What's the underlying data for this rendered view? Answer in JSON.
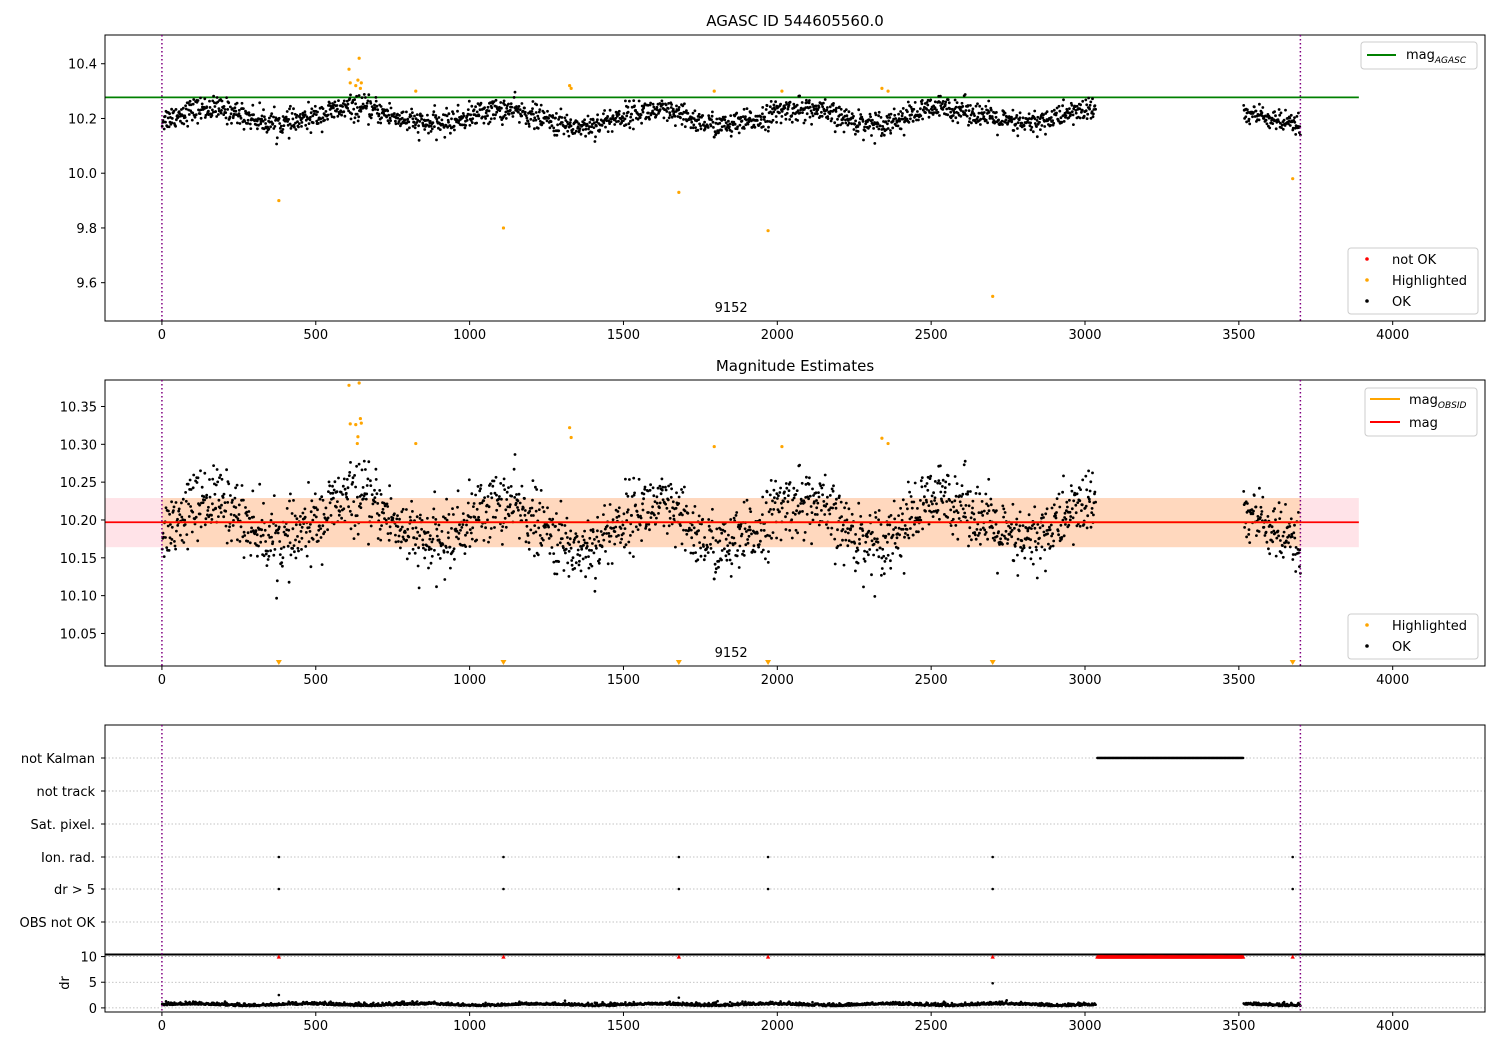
{
  "colors": {
    "ok": "#000000",
    "highlighted": "#ffa500",
    "not_ok": "#ff0000",
    "agasc_line": "#008000",
    "obsid_line": "#ffa500",
    "mag_line": "#ff0000",
    "band": "#ffc0cb",
    "band_orange": "#ffa500",
    "vline": "#800080",
    "grid": "#b0b0b0"
  },
  "chart_data": [
    {
      "type": "scatter",
      "title": "AGASC ID 544605560.0",
      "xlim": [
        -185,
        4300
      ],
      "ylim": [
        9.46,
        10.505
      ],
      "xticks": [
        "0",
        "500",
        "1000",
        "1500",
        "2000",
        "2500",
        "3000",
        "3500",
        "4000"
      ],
      "yticks": [
        "9.6",
        "9.8",
        "10.0",
        "10.2",
        "10.4"
      ],
      "annotation": "9152",
      "annotation_x": 1850,
      "obs_start": 0,
      "obs_stop": 3700,
      "agasc_mag": 10.277,
      "agasc_line_x": [
        -185,
        3890
      ],
      "legend_lines": [
        {
          "label": "mag",
          "sub": "AGASC",
          "color": "#008000"
        }
      ],
      "legend_points": [
        {
          "label": "not OK",
          "color": "#ff0000"
        },
        {
          "label": "Highlighted",
          "color": "#ffa500"
        },
        {
          "label": "OK",
          "color": "#000000"
        }
      ],
      "highlighted_points": [
        {
          "x": 380,
          "y": 9.9
        },
        {
          "x": 608,
          "y": 10.38
        },
        {
          "x": 612,
          "y": 10.33
        },
        {
          "x": 630,
          "y": 10.32
        },
        {
          "x": 637,
          "y": 10.34
        },
        {
          "x": 641,
          "y": 10.42
        },
        {
          "x": 645,
          "y": 10.31
        },
        {
          "x": 648,
          "y": 10.33
        },
        {
          "x": 825,
          "y": 10.3
        },
        {
          "x": 1110,
          "y": 9.8
        },
        {
          "x": 1325,
          "y": 10.32
        },
        {
          "x": 1330,
          "y": 10.31
        },
        {
          "x": 1680,
          "y": 9.93
        },
        {
          "x": 1795,
          "y": 10.3
        },
        {
          "x": 1970,
          "y": 9.79
        },
        {
          "x": 2015,
          "y": 10.3
        },
        {
          "x": 2340,
          "y": 10.31
        },
        {
          "x": 2360,
          "y": 10.3
        },
        {
          "x": 2700,
          "y": 9.55
        },
        {
          "x": 3675,
          "y": 9.98
        }
      ]
    },
    {
      "type": "scatter",
      "title": "Magnitude Estimates",
      "xlim": [
        -185,
        4300
      ],
      "ylim": [
        10.007,
        10.385
      ],
      "xticks": [
        "0",
        "500",
        "1000",
        "1500",
        "2000",
        "2500",
        "3000",
        "3500",
        "4000"
      ],
      "yticks": [
        "10.05",
        "10.10",
        "10.15",
        "10.20",
        "10.25",
        "10.30",
        "10.35"
      ],
      "annotation": "9152",
      "annotation_x": 1850,
      "mean_mag": 10.197,
      "band_low": 10.164,
      "band_high": 10.229,
      "band_x": [
        -185,
        3890
      ],
      "legend_lines": [
        {
          "label": "mag",
          "sub": "OBSID",
          "color": "#ffa500"
        },
        {
          "label": "mag",
          "sub": "",
          "color": "#ff0000"
        }
      ],
      "legend_points": [
        {
          "label": "Highlighted",
          "color": "#ffa500"
        },
        {
          "label": "OK",
          "color": "#000000"
        }
      ],
      "highlighted_points": [
        {
          "x": 608,
          "y": 10.378
        },
        {
          "x": 612,
          "y": 10.327
        },
        {
          "x": 630,
          "y": 10.326
        },
        {
          "x": 635,
          "y": 10.301
        },
        {
          "x": 637,
          "y": 10.31
        },
        {
          "x": 641,
          "y": 10.381
        },
        {
          "x": 645,
          "y": 10.334
        },
        {
          "x": 648,
          "y": 10.328
        },
        {
          "x": 825,
          "y": 10.301
        },
        {
          "x": 1325,
          "y": 10.322
        },
        {
          "x": 1330,
          "y": 10.309
        },
        {
          "x": 1795,
          "y": 10.297
        },
        {
          "x": 2015,
          "y": 10.297
        },
        {
          "x": 2340,
          "y": 10.308
        },
        {
          "x": 2360,
          "y": 10.301
        }
      ],
      "offscale_markers_x": [
        380,
        1110,
        1680,
        1970,
        2700,
        3675
      ]
    },
    {
      "type": "scatter",
      "title": "",
      "xlim": [
        -185,
        4300
      ],
      "categories": [
        "OBS not OK",
        "dr > 5",
        "Ion. rad.",
        "Sat. pixel.",
        "not track",
        "not Kalman"
      ],
      "flag_points": {
        "not Kalman": {
          "range": [
            3040,
            3515
          ]
        },
        "Ion. rad.": [
          380,
          1110,
          1680,
          1970,
          2700,
          3675
        ],
        "dr > 5": [
          380,
          1110,
          1680,
          1970,
          2700,
          3675
        ]
      }
    },
    {
      "type": "scatter",
      "title": "",
      "ylabel": "dr",
      "xlim": [
        -185,
        4300
      ],
      "ylim": [
        -0.8,
        10.5
      ],
      "xticks": [
        "0",
        "500",
        "1000",
        "1500",
        "2000",
        "2500",
        "3000",
        "3500",
        "4000"
      ],
      "yticks": [
        "0",
        "5",
        "10"
      ],
      "clip_value": 10,
      "clipped_markers_x": [
        380,
        1110,
        1680,
        1970,
        2700,
        3675
      ],
      "clipped_range": [
        3040,
        3515
      ],
      "outlier_points": [
        {
          "x": 380,
          "y": 2.5
        },
        {
          "x": 1680,
          "y": 2.0
        },
        {
          "x": 2700,
          "y": 4.8
        },
        {
          "x": 1310,
          "y": 1.4
        }
      ]
    }
  ]
}
